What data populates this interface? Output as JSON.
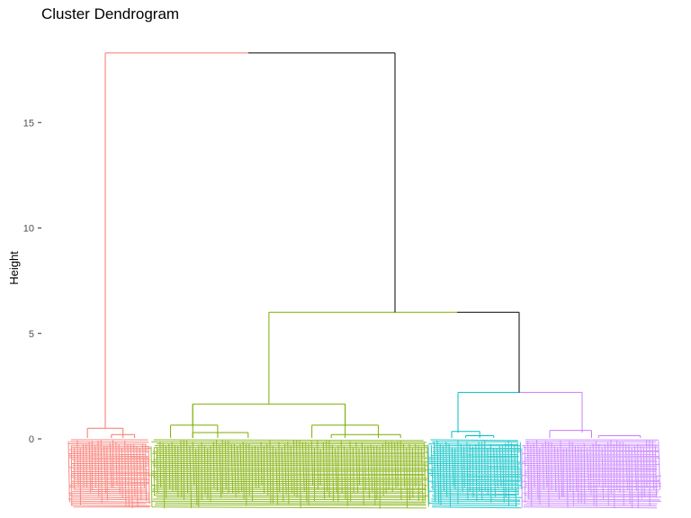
{
  "chart_data": {
    "type": "dendrogram",
    "title": "Cluster Dendrogram",
    "xlabel": "",
    "ylabel": "Height",
    "ylim": [
      -3.3,
      18.5
    ],
    "yticks": [
      0,
      5,
      10,
      15
    ],
    "k": 4,
    "root_height": 18.3,
    "cluster_colors": [
      "#F8766D",
      "#7CAE00",
      "#00BFC4",
      "#C77CFF"
    ],
    "merge_colors": {
      "root_link": "#000000"
    },
    "merges": [
      {
        "id": "m_root",
        "height": 18.3,
        "children": [
          "cluster_1",
          "m_right"
        ],
        "top_colors": [
          "#F8766D",
          "#000000"
        ]
      },
      {
        "id": "m_right",
        "height": 6.0,
        "children": [
          "cluster_2",
          "m_34"
        ],
        "top_colors": [
          "#7CAE00",
          "#000000"
        ]
      },
      {
        "id": "m_34",
        "height": 2.2,
        "children": [
          "cluster_3",
          "cluster_4"
        ],
        "top_colors": [
          "#00BFC4",
          "#C77CFF"
        ]
      }
    ],
    "clusters": [
      {
        "id": "cluster_1",
        "color": "#F8766D",
        "sub_merges": [
          {
            "height": 0.5,
            "children": [
              0.23,
              0.66
            ]
          },
          {
            "height": 0.2,
            "children": [
              0.52,
              0.8
            ]
          }
        ]
      },
      {
        "id": "cluster_2",
        "color": "#7CAE00",
        "height": 1.65,
        "sub_merges": [
          {
            "height": 1.65,
            "children": [
              0.15,
              0.7
            ]
          },
          {
            "height": 0.65,
            "children": [
              0.07,
              0.24
            ]
          },
          {
            "height": 0.65,
            "children": [
              0.58,
              0.82
            ]
          },
          {
            "height": 0.3,
            "children": [
              0.15,
              0.35
            ]
          },
          {
            "height": 0.2,
            "children": [
              0.65,
              0.9
            ]
          }
        ]
      },
      {
        "id": "cluster_3",
        "color": "#00BFC4",
        "sub_merges": [
          {
            "height": 0.35,
            "children": [
              0.25,
              0.55
            ]
          },
          {
            "height": 0.15,
            "children": [
              0.4,
              0.7
            ]
          }
        ]
      },
      {
        "id": "cluster_4",
        "color": "#C77CFF",
        "sub_merges": [
          {
            "height": 0.4,
            "children": [
              0.2,
              0.5
            ]
          },
          {
            "height": 0.15,
            "children": [
              0.55,
              0.85
            ]
          }
        ]
      }
    ],
    "leaf_labels_legible": false
  }
}
